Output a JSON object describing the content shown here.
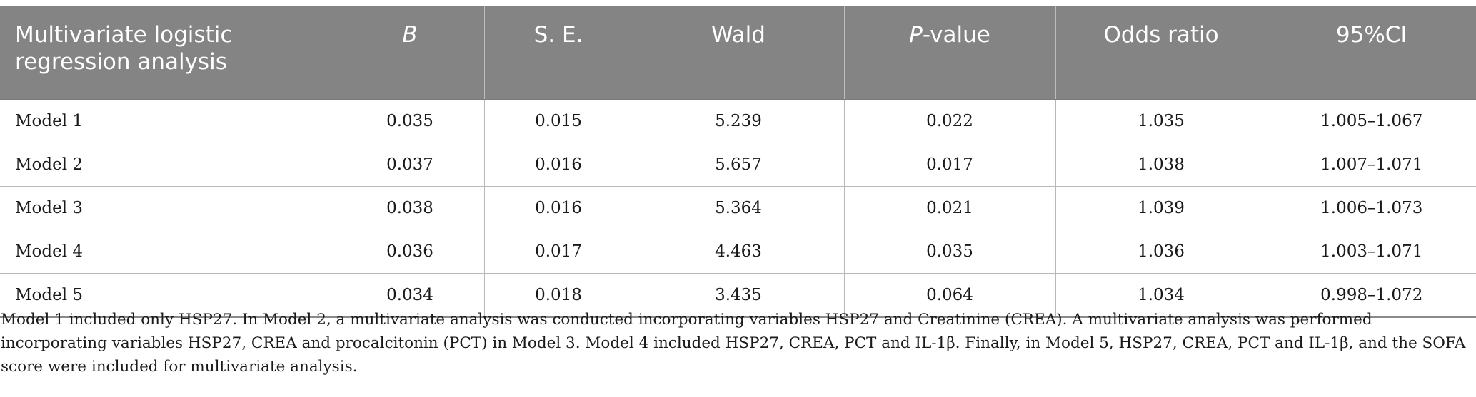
{
  "table": {
    "headers": {
      "col0": "Multivariate logistic regression analysis",
      "col1": "B",
      "col2": "S. E.",
      "col3": "Wald",
      "col4_italic": "P",
      "col4_rest": "-value",
      "col5": "Odds ratio",
      "col6": "95%CI"
    },
    "rows": [
      {
        "model": "Model 1",
        "b": "0.035",
        "se": "0.015",
        "wald": "5.239",
        "p": "0.022",
        "or": "1.035",
        "ci": "1.005–1.067"
      },
      {
        "model": "Model 2",
        "b": "0.037",
        "se": "0.016",
        "wald": "5.657",
        "p": "0.017",
        "or": "1.038",
        "ci": "1.007–1.071"
      },
      {
        "model": "Model 3",
        "b": "0.038",
        "se": "0.016",
        "wald": "5.364",
        "p": "0.021",
        "or": "1.039",
        "ci": "1.006–1.073"
      },
      {
        "model": "Model 4",
        "b": "0.036",
        "se": "0.017",
        "wald": "4.463",
        "p": "0.035",
        "or": "1.036",
        "ci": "1.003–1.071"
      },
      {
        "model": "Model 5",
        "b": "0.034",
        "se": "0.018",
        "wald": "3.435",
        "p": "0.064",
        "or": "1.034",
        "ci": "0.998–1.072"
      }
    ]
  },
  "footnote": "Model 1 included only HSP27. In Model 2, a multivariate analysis was conducted incorporating variables HSP27 and Creatinine (CREA). A multivariate analysis was performed incorporating variables HSP27, CREA and procalcitonin (PCT) in Model 3. Model 4 included HSP27, CREA, PCT and IL-1β. Finally, in Model 5, HSP27, CREA, PCT and IL-1β, and the SOFA score were included for multivariate analysis."
}
